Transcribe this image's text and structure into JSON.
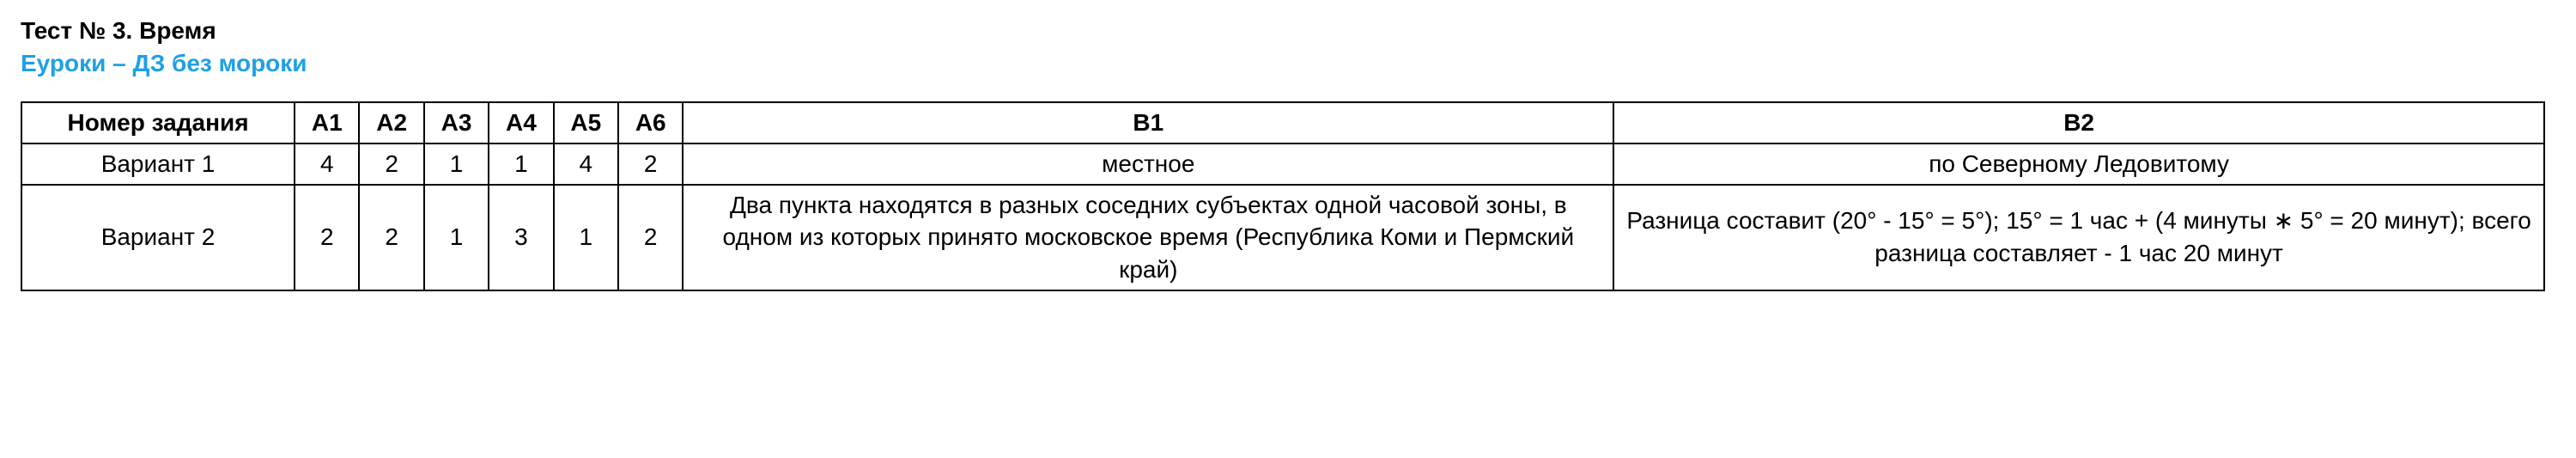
{
  "header": {
    "title": "Тест № 3. Время",
    "subtitle": "Еуроки – ДЗ без мороки"
  },
  "table": {
    "columns": {
      "task_number": "Номер задания",
      "a1": "А1",
      "a2": "А2",
      "a3": "А3",
      "a4": "А4",
      "a5": "А5",
      "a6": "А6",
      "b1": "В1",
      "b2": "В2"
    },
    "rows": [
      {
        "label": "Вариант 1",
        "a1": "4",
        "a2": "2",
        "a3": "1",
        "a4": "1",
        "a5": "4",
        "a6": "2",
        "b1": "местное",
        "b2": "по Северному Ледовитому"
      },
      {
        "label": "Вариант 2",
        "a1": "2",
        "a2": "2",
        "a3": "1",
        "a4": "3",
        "a5": "1",
        "a6": "2",
        "b1": "Два пункта находятся в разных соседних субъектах одной часовой зоны, в одном из которых принято московское время (Республика Коми и Пермский край)",
        "b2": "Разница составит (20° - 15° = 5°); 15° = 1 час + (4 минуты ∗ 5° = 20 минут); всего разница составляет - 1 час 20 минут"
      }
    ]
  },
  "styling": {
    "title_fontsize": 28,
    "title_weight": 700,
    "subtitle_color": "#1ea0e6",
    "border_color": "#000000",
    "background_color": "#ffffff",
    "text_color": "#000000",
    "col_widths": {
      "task": 270,
      "a": 64,
      "b": 920
    }
  }
}
